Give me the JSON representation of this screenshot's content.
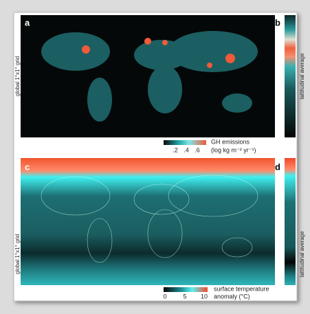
{
  "panels": [
    {
      "letter": "a",
      "side_label": "global 1°x1° grid",
      "strip_letter": "b",
      "strip_label": "lattitudinal average",
      "colorbar": {
        "ticks": [
          ".2",
          ".4",
          ".6"
        ],
        "title": "GH emissions",
        "unit": "(log kg m⁻² yr⁻¹)"
      }
    },
    {
      "letter": "c",
      "side_label": "global 1°x1° grid",
      "strip_letter": "d",
      "strip_label": "lattitudinal average",
      "colorbar": {
        "ticks": [
          "0",
          "5",
          "10"
        ],
        "title": "surface temperature",
        "unit": "anomaly (°C)"
      }
    }
  ]
}
